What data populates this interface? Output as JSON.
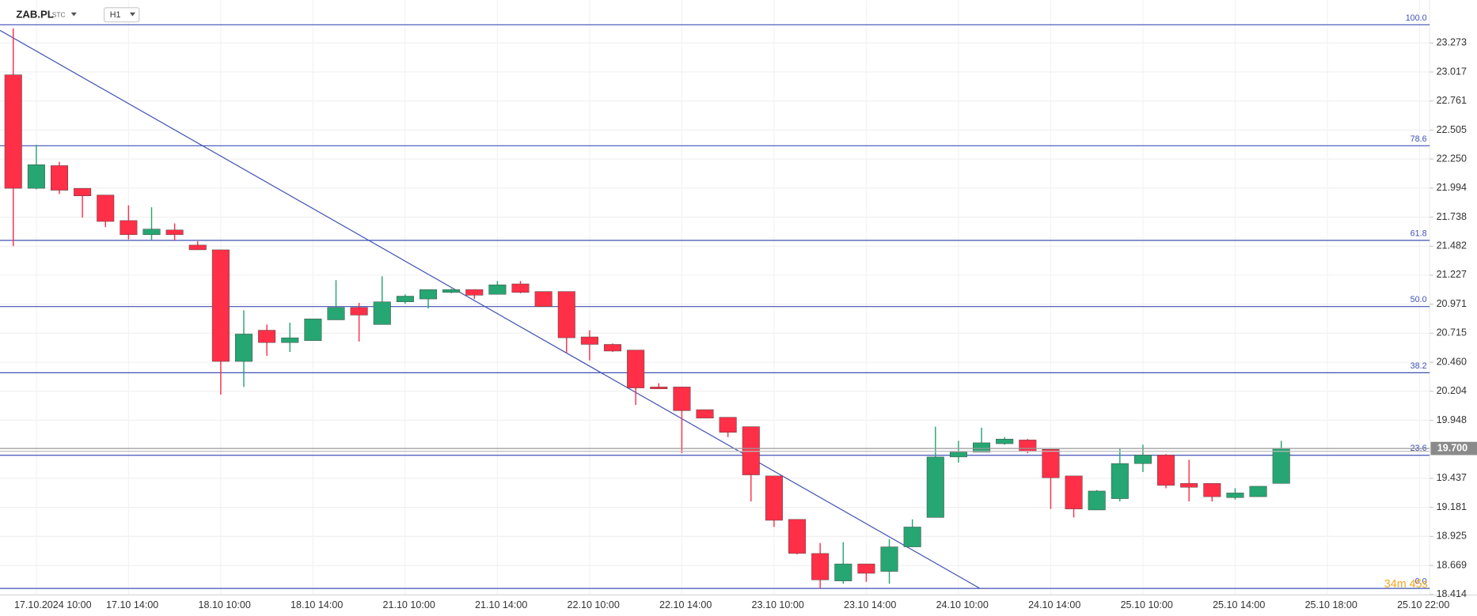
{
  "chart_data": {
    "type": "candlestick",
    "symbol": "ZAB.PL",
    "market": "STC",
    "timeframe": "H1",
    "categories": [
      null,
      "17.10.2024 10:00",
      null,
      null,
      null,
      "17.10 14:00",
      null,
      null,
      null,
      "18.10 10:00",
      null,
      null,
      null,
      "18.10 14:00",
      null,
      null,
      null,
      "21.10 10:00",
      null,
      null,
      null,
      "21.10 14:00",
      null,
      null,
      null,
      "22.10 10:00",
      null,
      null,
      null,
      "22.10 14:00",
      null,
      null,
      null,
      "23.10 10:00",
      null,
      null,
      null,
      "23.10 14:00",
      null,
      null,
      null,
      "24.10 10:00",
      null,
      null,
      null,
      "24.10 14:00",
      null,
      null,
      null,
      "25.10 10:00",
      null,
      null,
      null,
      "25.10 14:00",
      null,
      null,
      null,
      "25.10 18:00",
      null,
      null,
      null,
      "25.10 22:00"
    ],
    "open": [
      22.992,
      21.992,
      22.192,
      21.992,
      21.933,
      21.708,
      21.583,
      21.625,
      21.492,
      21.45,
      20.467,
      20.742,
      20.633,
      20.65,
      20.833,
      20.942,
      20.792,
      20.992,
      21.017,
      21.075,
      21.1,
      21.058,
      21.15,
      21.083,
      21.083,
      20.683,
      20.617,
      20.567,
      20.242,
      20.242,
      20.042,
      19.975,
      19.892,
      19.458,
      19.075,
      18.775,
      18.533,
      18.683,
      18.617,
      18.833,
      19.092,
      19.625,
      19.667,
      19.742,
      19.775,
      19.692,
      19.458,
      19.158,
      19.258,
      19.567,
      19.642,
      19.392,
      19.392,
      19.267,
      19.275,
      19.392,
      null,
      null,
      null,
      null,
      null,
      null
    ],
    "high": [
      23.4,
      22.375,
      22.225,
      21.992,
      21.933,
      21.842,
      21.825,
      21.683,
      21.525,
      21.45,
      20.917,
      20.792,
      20.808,
      20.842,
      21.183,
      20.983,
      21.217,
      21.058,
      21.1,
      21.108,
      21.1,
      21.175,
      21.175,
      21.083,
      21.083,
      20.742,
      20.625,
      20.567,
      20.275,
      20.242,
      20.042,
      19.975,
      19.892,
      19.458,
      19.075,
      18.867,
      18.875,
      18.683,
      18.9,
      19.075,
      19.892,
      19.767,
      19.883,
      19.8,
      19.783,
      19.692,
      19.458,
      19.333,
      19.7,
      19.733,
      19.65,
      19.6,
      19.392,
      19.35,
      19.367,
      19.767,
      null,
      null,
      null,
      null,
      null,
      null
    ],
    "low": [
      21.483,
      21.983,
      21.942,
      21.733,
      21.65,
      21.542,
      21.533,
      21.533,
      21.45,
      20.175,
      20.242,
      20.517,
      20.55,
      20.65,
      20.833,
      20.642,
      20.792,
      20.975,
      20.933,
      21.067,
      21.017,
      21.058,
      21.067,
      20.95,
      20.542,
      20.475,
      20.55,
      20.083,
      20.225,
      19.658,
      19.967,
      19.8,
      19.233,
      19.008,
      18.767,
      18.467,
      18.508,
      18.525,
      18.508,
      18.833,
      19.092,
      19.575,
      19.667,
      19.733,
      19.658,
      19.167,
      19.092,
      19.158,
      19.233,
      19.492,
      19.35,
      19.233,
      19.233,
      19.25,
      19.275,
      19.392,
      null,
      null,
      null,
      null,
      null,
      null
    ],
    "close": [
      21.992,
      22.2,
      21.975,
      21.925,
      21.7,
      21.583,
      21.633,
      21.583,
      21.45,
      20.467,
      20.708,
      20.633,
      20.675,
      20.842,
      20.942,
      20.875,
      20.992,
      21.042,
      21.1,
      21.1,
      21.05,
      21.142,
      21.075,
      20.95,
      20.675,
      20.617,
      20.558,
      20.233,
      20.225,
      20.033,
      19.967,
      19.842,
      19.467,
      19.067,
      18.775,
      18.542,
      18.683,
      18.6,
      18.833,
      19.008,
      19.625,
      19.667,
      19.75,
      19.783,
      19.675,
      19.442,
      19.167,
      19.325,
      19.567,
      19.642,
      19.375,
      19.358,
      19.275,
      19.308,
      19.367,
      19.7,
      null,
      null,
      null,
      null,
      null,
      null
    ],
    "up_color": "#26a672",
    "down_color": "#ff2f48",
    "ylim": [
      18.375,
      23.65
    ],
    "yticks": [
      23.273,
      23.017,
      22.761,
      22.505,
      {
        "value": 22.25,
        "label": "22.250"
      },
      21.994,
      21.738,
      21.482,
      21.227,
      20.971,
      20.715,
      {
        "value": 20.46,
        "label": "20.460"
      },
      20.204,
      19.948,
      19.437,
      19.181,
      18.925,
      18.669,
      18.414
    ],
    "grid": true,
    "fib_levels": [
      {
        "label": "100.0",
        "value": 23.433
      },
      {
        "label": "78.6",
        "value": 22.367
      },
      {
        "label": "61.8",
        "value": 21.533
      },
      {
        "label": "50.0",
        "value": 20.95
      },
      {
        "label": "38.2",
        "value": 20.367
      },
      {
        "label": "23.6",
        "value": 19.64
      },
      {
        "label": "0.0",
        "value": 18.467
      }
    ],
    "fib_color": "#3f51b5",
    "current_price": {
      "value": 19.7,
      "label": "19.700"
    },
    "countdown": "34m 45s"
  }
}
